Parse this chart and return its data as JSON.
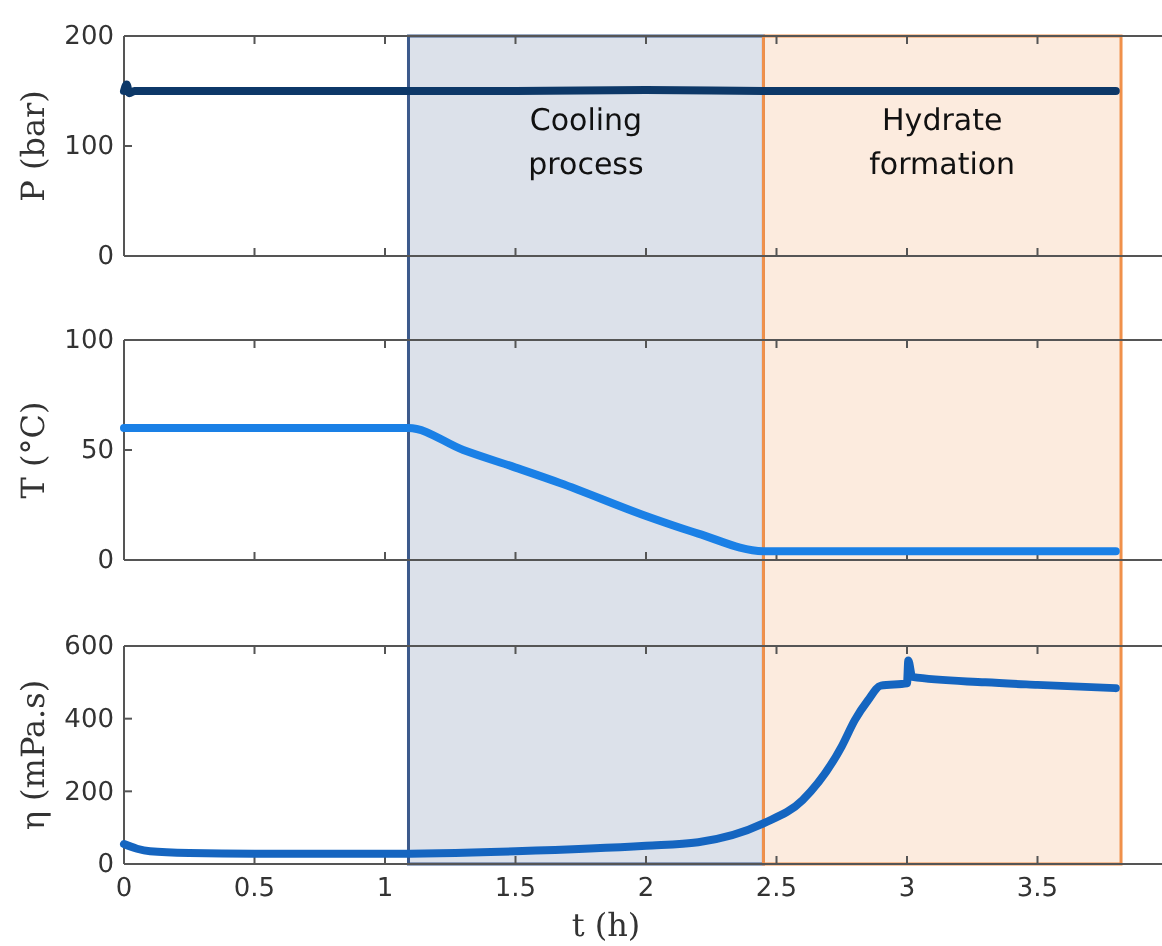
{
  "chart_data": [
    {
      "type": "line",
      "ylabel": "P (bar)",
      "x": [
        0,
        0.01,
        0.02,
        0.04,
        0.5,
        1,
        1.5,
        2,
        2.5,
        3,
        3.5,
        3.8
      ],
      "series": [
        {
          "color": "#0d3868",
          "values": [
            150,
            156,
            148,
            150,
            150,
            150,
            150,
            151,
            150,
            150,
            150,
            150
          ]
        }
      ],
      "xlim": [
        0,
        4
      ],
      "xticks": [
        0,
        0.5,
        1,
        1.5,
        2,
        2.5,
        3,
        3.5
      ],
      "ylim": [
        0,
        200
      ],
      "yticks": [
        0,
        100,
        200
      ],
      "tick_labels": "y",
      "bands": [
        {
          "axis": "x",
          "from": 1.09,
          "to": 2.45,
          "label": "Cooling process",
          "color": "#3c5a8c"
        },
        {
          "axis": "x",
          "from": 2.45,
          "to": 3.82,
          "label": "Hydrate formation",
          "color": "#f0904a"
        }
      ]
    },
    {
      "type": "line",
      "ylabel": "T (°C)",
      "x": [
        0,
        1.09,
        1.3,
        1.5,
        1.67,
        2,
        2.2,
        2.45,
        3,
        3.8
      ],
      "series": [
        {
          "color": "#1a80e6",
          "values": [
            60,
            60,
            50,
            42,
            35,
            20,
            12,
            4,
            4,
            4
          ]
        }
      ],
      "xlim": [
        0,
        4
      ],
      "xticks": [
        0,
        0.5,
        1,
        1.5,
        2,
        2.5,
        3,
        3.5
      ],
      "ylim": [
        0,
        100
      ],
      "yticks": [
        0,
        50,
        100
      ],
      "tick_labels": "y",
      "bands": [
        {
          "axis": "x",
          "from": 1.09,
          "to": 2.45,
          "color": "#3c5a8c"
        },
        {
          "axis": "x",
          "from": 2.45,
          "to": 3.82,
          "color": "#f0904a"
        }
      ]
    },
    {
      "type": "line",
      "ylabel": "η (mPa.s)",
      "xlabel": "t (h)",
      "x": [
        0,
        0.05,
        0.1,
        0.25,
        0.5,
        1,
        1.5,
        2,
        2.2,
        2.45,
        2.6,
        2.75,
        2.8,
        2.85,
        2.9,
        3,
        3.005,
        3.02,
        3.3,
        3.5,
        3.8
      ],
      "series": [
        {
          "color": "#1565c0",
          "values": [
            55,
            42,
            35,
            30,
            28,
            28,
            35,
            50,
            60,
            112,
            176,
            324,
            396,
            450,
            491,
            497,
            560,
            515,
            500,
            493,
            484
          ]
        }
      ],
      "xlim": [
        0,
        4
      ],
      "xticks": [
        0,
        0.5,
        1,
        1.5,
        2,
        2.5,
        3,
        3.5
      ],
      "ylim": [
        0,
        600
      ],
      "yticks": [
        0,
        200,
        400,
        600
      ],
      "bands": [
        {
          "axis": "x",
          "from": 1.09,
          "to": 2.45,
          "color": "#3c5a8c"
        },
        {
          "axis": "x",
          "from": 2.45,
          "to": 3.82,
          "color": "#f0904a"
        }
      ]
    }
  ]
}
